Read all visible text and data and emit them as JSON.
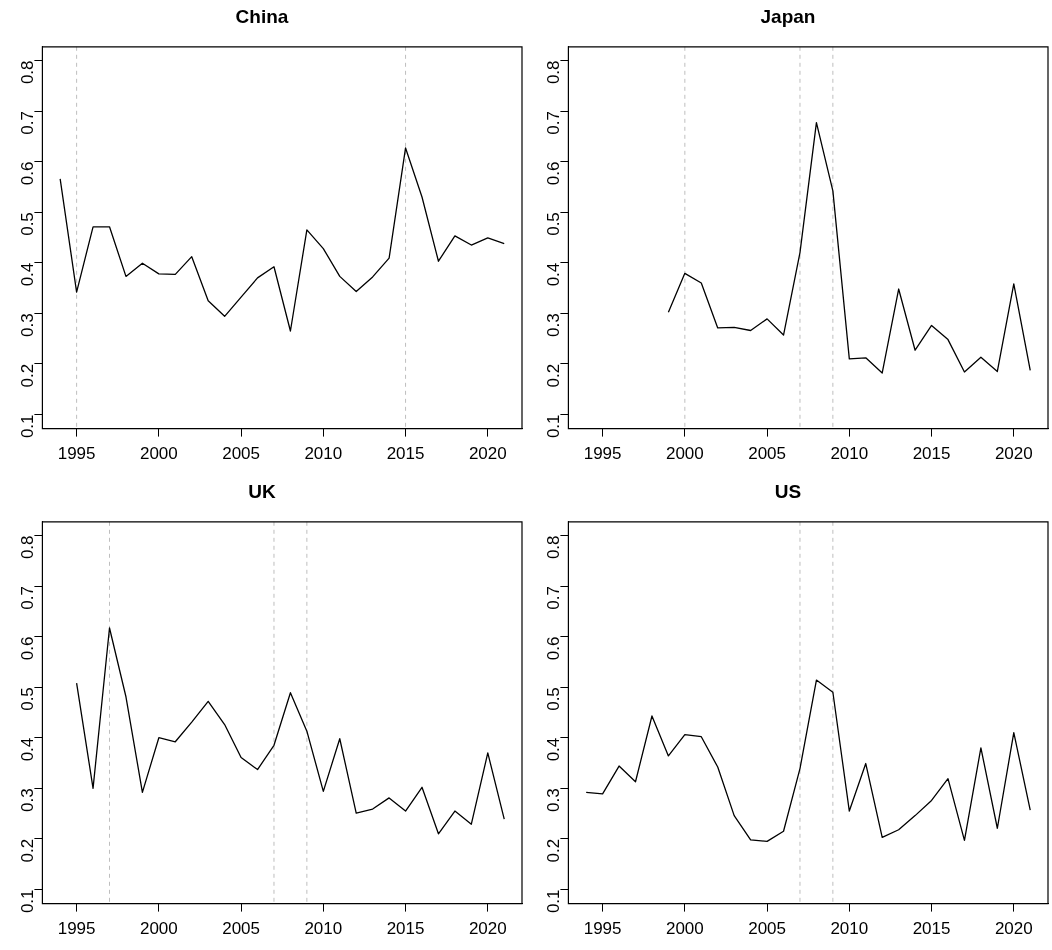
{
  "chart_data": [
    {
      "type": "line",
      "title": "China",
      "color": "#000000",
      "marker": "none",
      "line_style": "solid",
      "grid": false,
      "x": [
        1994,
        1995,
        1996,
        1997,
        1998,
        1999,
        2000,
        2001,
        2002,
        2003,
        2004,
        2005,
        2006,
        2007,
        2008,
        2009,
        2010,
        2011,
        2012,
        2013,
        2014,
        2015,
        2016,
        2017,
        2018,
        2019,
        2020,
        2021
      ],
      "values": [
        0.566,
        0.342,
        0.471,
        0.471,
        0.373,
        0.399,
        0.378,
        0.377,
        0.412,
        0.325,
        0.294,
        0.332,
        0.37,
        0.392,
        0.265,
        0.465,
        0.428,
        0.373,
        0.343,
        0.372,
        0.409,
        0.627,
        0.53,
        0.403,
        0.453,
        0.435,
        0.449,
        0.438
      ],
      "xlim": [
        1992.92,
        2022.08
      ],
      "xticks": [
        1995,
        2000,
        2005,
        2010,
        2015,
        2020
      ],
      "ylim": [
        0.072,
        0.827
      ],
      "yticks": [
        0.1,
        0.2,
        0.3,
        0.4,
        0.5,
        0.6,
        0.7,
        0.8
      ],
      "ref_lines": [
        {
          "axis": "x",
          "value": 1995,
          "color": "#bebebe",
          "line_style": "dashed"
        },
        {
          "axis": "x",
          "value": 2015,
          "color": "#bebebe",
          "line_style": "dashed"
        }
      ]
    },
    {
      "type": "line",
      "title": "Japan",
      "color": "#000000",
      "marker": "none",
      "line_style": "solid",
      "grid": false,
      "x": [
        1999,
        2000,
        2001,
        2002,
        2003,
        2004,
        2005,
        2006,
        2007,
        2008,
        2009,
        2010,
        2011,
        2012,
        2013,
        2014,
        2015,
        2016,
        2017,
        2018,
        2019,
        2020,
        2021
      ],
      "values": [
        0.302,
        0.379,
        0.36,
        0.271,
        0.272,
        0.266,
        0.289,
        0.257,
        0.42,
        0.677,
        0.542,
        0.21,
        0.212,
        0.182,
        0.348,
        0.227,
        0.276,
        0.248,
        0.184,
        0.213,
        0.185,
        0.358,
        0.187
      ],
      "xlim": [
        1992.92,
        2022.08
      ],
      "xticks": [
        1995,
        2000,
        2005,
        2010,
        2015,
        2020
      ],
      "ylim": [
        0.072,
        0.827
      ],
      "yticks": [
        0.1,
        0.2,
        0.3,
        0.4,
        0.5,
        0.6,
        0.7,
        0.8
      ],
      "ref_lines": [
        {
          "axis": "x",
          "value": 2000,
          "color": "#bebebe",
          "line_style": "dashed"
        },
        {
          "axis": "x",
          "value": 2007,
          "color": "#bebebe",
          "line_style": "dashed"
        },
        {
          "axis": "x",
          "value": 2009,
          "color": "#bebebe",
          "line_style": "dashed"
        }
      ]
    },
    {
      "type": "line",
      "title": "UK",
      "color": "#000000",
      "marker": "none",
      "line_style": "solid",
      "grid": false,
      "x": [
        1995,
        1996,
        1997,
        1998,
        1999,
        2000,
        2001,
        2002,
        2003,
        2004,
        2005,
        2006,
        2007,
        2008,
        2009,
        2010,
        2011,
        2012,
        2013,
        2014,
        2015,
        2016,
        2017,
        2018,
        2019,
        2020,
        2021
      ],
      "values": [
        0.508,
        0.3,
        0.617,
        0.481,
        0.292,
        0.4,
        0.392,
        0.431,
        0.472,
        0.426,
        0.361,
        0.337,
        0.385,
        0.489,
        0.413,
        0.294,
        0.398,
        0.251,
        0.259,
        0.281,
        0.255,
        0.302,
        0.21,
        0.255,
        0.229,
        0.37,
        0.239
      ],
      "xlim": [
        1992.92,
        2022.08
      ],
      "xticks": [
        1995,
        2000,
        2005,
        2010,
        2015,
        2020
      ],
      "ylim": [
        0.072,
        0.827
      ],
      "yticks": [
        0.1,
        0.2,
        0.3,
        0.4,
        0.5,
        0.6,
        0.7,
        0.8
      ],
      "ref_lines": [
        {
          "axis": "x",
          "value": 1997,
          "color": "#bebebe",
          "line_style": "dashed"
        },
        {
          "axis": "x",
          "value": 2007,
          "color": "#bebebe",
          "line_style": "dashed"
        },
        {
          "axis": "x",
          "value": 2009,
          "color": "#bebebe",
          "line_style": "dashed"
        }
      ]
    },
    {
      "type": "line",
      "title": "US",
      "color": "#000000",
      "marker": "none",
      "line_style": "solid",
      "grid": false,
      "x": [
        1994,
        1995,
        1996,
        1997,
        1998,
        1999,
        2000,
        2001,
        2002,
        2003,
        2004,
        2005,
        2006,
        2007,
        2008,
        2009,
        2010,
        2011,
        2012,
        2013,
        2014,
        2015,
        2016,
        2017,
        2018,
        2019,
        2020,
        2021
      ],
      "values": [
        0.292,
        0.289,
        0.344,
        0.313,
        0.443,
        0.364,
        0.406,
        0.402,
        0.342,
        0.246,
        0.198,
        0.195,
        0.215,
        0.339,
        0.514,
        0.49,
        0.255,
        0.349,
        0.203,
        0.218,
        0.246,
        0.276,
        0.319,
        0.197,
        0.38,
        0.221,
        0.41,
        0.257
      ],
      "xlim": [
        1992.92,
        2022.08
      ],
      "xticks": [
        1995,
        2000,
        2005,
        2010,
        2015,
        2020
      ],
      "ylim": [
        0.072,
        0.827
      ],
      "yticks": [
        0.1,
        0.2,
        0.3,
        0.4,
        0.5,
        0.6,
        0.7,
        0.8
      ],
      "ref_lines": [
        {
          "axis": "x",
          "value": 2007,
          "color": "#bebebe",
          "line_style": "dashed"
        },
        {
          "axis": "x",
          "value": 2009,
          "color": "#bebebe",
          "line_style": "dashed"
        }
      ]
    }
  ]
}
